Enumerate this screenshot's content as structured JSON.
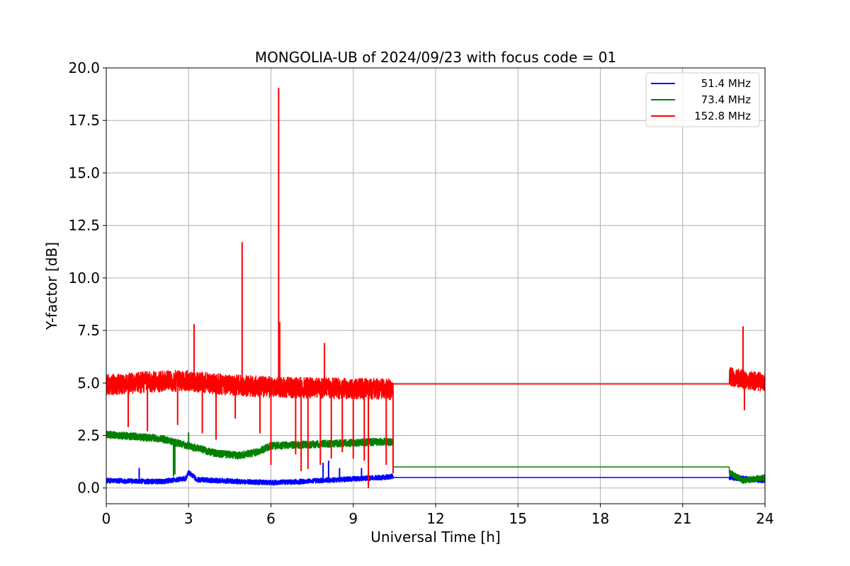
{
  "chart_data": {
    "type": "line",
    "title": "MONGOLIA-UB of 2024/09/23 with focus code = 01",
    "xlabel": "Universal Time [h]",
    "ylabel": "Y-factor [dB]",
    "xlim": [
      0,
      24
    ],
    "ylim": [
      -0.75,
      20.0
    ],
    "xticks": [
      0,
      3,
      6,
      9,
      12,
      15,
      18,
      21,
      24
    ],
    "xtick_labels": [
      "0",
      "3",
      "6",
      "9",
      "12",
      "15",
      "18",
      "21",
      "24"
    ],
    "yticks": [
      0.0,
      2.5,
      5.0,
      7.5,
      10.0,
      12.5,
      15.0,
      17.5,
      20.0
    ],
    "ytick_labels": [
      "0.0",
      "2.5",
      "5.0",
      "7.5",
      "10.0",
      "12.5",
      "15.0",
      "17.5",
      "20.0"
    ],
    "grid": true,
    "legend_position": "top-right",
    "series": [
      {
        "name": "51.4 MHz",
        "color": "#0000ff",
        "segments": [
          {
            "x_start": 0.0,
            "x_end": 10.45,
            "baseline": [
              [
                0.0,
                0.35
              ],
              [
                2.0,
                0.3
              ],
              [
                2.9,
                0.45
              ],
              [
                3.0,
                0.75
              ],
              [
                3.3,
                0.4
              ],
              [
                5.0,
                0.3
              ],
              [
                6.0,
                0.25
              ],
              [
                7.0,
                0.3
              ],
              [
                8.5,
                0.4
              ],
              [
                10.0,
                0.5
              ],
              [
                10.45,
                0.55
              ]
            ],
            "noise": 0.12
          },
          {
            "x_start": 10.45,
            "x_end": 22.7,
            "baseline": [
              [
                10.45,
                0.5
              ],
              [
                22.7,
                0.5
              ]
            ],
            "noise": 0.0
          },
          {
            "x_start": 22.7,
            "x_end": 24.0,
            "baseline": [
              [
                22.7,
                0.5
              ],
              [
                23.2,
                0.45
              ],
              [
                24.0,
                0.35
              ]
            ],
            "noise": 0.12
          }
        ],
        "spikes": [
          [
            1.2,
            0.95
          ],
          [
            7.9,
            1.2
          ],
          [
            8.1,
            1.3
          ],
          [
            8.5,
            0.95
          ],
          [
            9.3,
            0.95
          ]
        ]
      },
      {
        "name": "73.4 MHz",
        "color": "#008000",
        "segments": [
          {
            "x_start": 0.0,
            "x_end": 10.45,
            "baseline": [
              [
                0.0,
                2.55
              ],
              [
                1.0,
                2.45
              ],
              [
                2.0,
                2.35
              ],
              [
                3.0,
                2.0
              ],
              [
                4.0,
                1.65
              ],
              [
                4.8,
                1.55
              ],
              [
                5.5,
                1.7
              ],
              [
                6.0,
                2.0
              ],
              [
                7.0,
                2.05
              ],
              [
                8.0,
                2.1
              ],
              [
                9.0,
                2.15
              ],
              [
                10.0,
                2.2
              ],
              [
                10.45,
                2.2
              ]
            ],
            "noise": 0.18
          },
          {
            "x_start": 10.45,
            "x_end": 22.7,
            "baseline": [
              [
                10.45,
                1.0
              ],
              [
                22.7,
                1.0
              ]
            ],
            "noise": 0.0
          },
          {
            "x_start": 22.7,
            "x_end": 24.0,
            "baseline": [
              [
                22.7,
                0.75
              ],
              [
                23.2,
                0.35
              ],
              [
                24.0,
                0.5
              ]
            ],
            "noise": 0.15
          }
        ],
        "spikes": [
          [
            2.45,
            0.55
          ],
          [
            2.5,
            0.65
          ],
          [
            3.0,
            2.65
          ]
        ]
      },
      {
        "name": "152.8 MHz",
        "color": "#ff0000",
        "segments": [
          {
            "x_start": 0.0,
            "x_end": 10.45,
            "baseline": [
              [
                0.0,
                4.9
              ],
              [
                1.5,
                5.05
              ],
              [
                2.5,
                5.1
              ],
              [
                3.0,
                5.1
              ],
              [
                4.0,
                4.95
              ],
              [
                6.0,
                4.8
              ],
              [
                8.0,
                4.75
              ],
              [
                10.45,
                4.7
              ]
            ],
            "noise": 0.5
          },
          {
            "x_start": 10.45,
            "x_end": 22.7,
            "baseline": [
              [
                10.45,
                4.95
              ],
              [
                22.7,
                4.95
              ]
            ],
            "noise": 0.0
          },
          {
            "x_start": 22.7,
            "x_end": 24.0,
            "baseline": [
              [
                22.7,
                5.3
              ],
              [
                24.0,
                5.0
              ]
            ],
            "noise": 0.45
          }
        ],
        "spikes": [
          [
            3.2,
            7.8
          ],
          [
            4.95,
            11.7
          ],
          [
            6.28,
            19.05
          ],
          [
            6.32,
            7.9
          ],
          [
            7.95,
            6.9
          ],
          [
            23.2,
            7.7
          ],
          [
            0.8,
            2.9
          ],
          [
            1.5,
            2.7
          ],
          [
            2.6,
            3.0
          ],
          [
            3.5,
            2.6
          ],
          [
            4.0,
            2.3
          ],
          [
            4.7,
            3.3
          ],
          [
            5.6,
            2.6
          ],
          [
            6.0,
            1.1
          ],
          [
            6.9,
            1.6
          ],
          [
            7.1,
            0.8
          ],
          [
            7.35,
            0.9
          ],
          [
            7.8,
            1.1
          ],
          [
            8.2,
            1.4
          ],
          [
            8.6,
            1.7
          ],
          [
            9.0,
            1.4
          ],
          [
            9.4,
            1.3
          ],
          [
            9.55,
            0.0
          ],
          [
            10.2,
            1.1
          ],
          [
            10.45,
            0.7
          ],
          [
            23.25,
            3.7
          ]
        ]
      }
    ]
  }
}
